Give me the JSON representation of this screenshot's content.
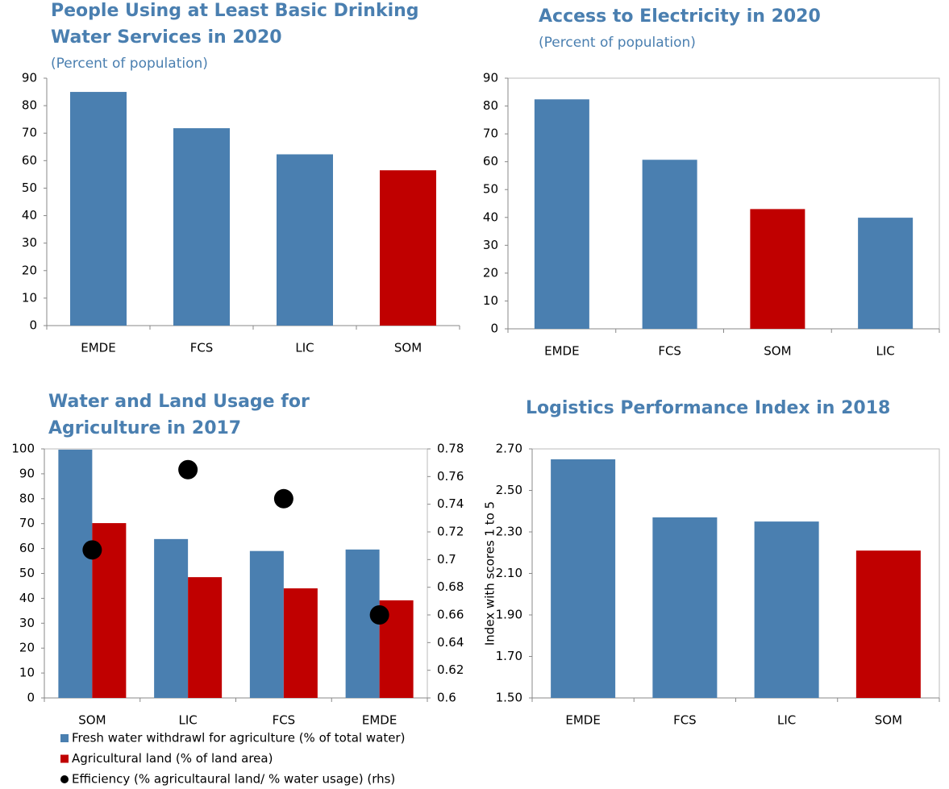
{
  "chart_data": [
    {
      "type": "bar",
      "title": [
        "People Using at Least Basic Drinking",
        "Water Services in 2020"
      ],
      "subtitle": "(Percent of population)",
      "categories": [
        "EMDE",
        "FCS",
        "LIC",
        "SOM"
      ],
      "values": [
        85,
        71.8,
        62.3,
        56.5
      ],
      "colors": [
        "#4a7fb0",
        "#4a7fb0",
        "#4a7fb0",
        "#c00000"
      ],
      "ylim": [
        0,
        90
      ],
      "yticks": [
        0,
        10,
        20,
        30,
        40,
        50,
        60,
        70,
        80,
        90
      ]
    },
    {
      "type": "bar",
      "title": [
        "Access to Electricity in 2020"
      ],
      "subtitle": "(Percent of population)",
      "categories": [
        "EMDE",
        "FCS",
        "SOM",
        "LIC"
      ],
      "values": [
        82.4,
        60.7,
        43,
        39.9
      ],
      "colors": [
        "#4a7fb0",
        "#4a7fb0",
        "#c00000",
        "#4a7fb0"
      ],
      "ylim": [
        0,
        90
      ],
      "yticks": [
        0,
        10,
        20,
        30,
        40,
        50,
        60,
        70,
        80,
        90
      ]
    },
    {
      "type": "bar",
      "title": [
        "Water and Land Usage for",
        "Agriculture in 2017"
      ],
      "categories": [
        "SOM",
        "LIC",
        "FCS",
        "EMDE"
      ],
      "series": [
        {
          "name": "Fresh water withdrawl for agriculture (% of total water)",
          "color": "#4a7fb0",
          "values": [
            99.7,
            63.8,
            59,
            59.6
          ]
        },
        {
          "name": "Agricultural land (% of land area)",
          "color": "#c00000",
          "values": [
            70.2,
            48.5,
            44,
            39.2
          ]
        },
        {
          "name": "Efficiency (% agricultaural land/ % water usage) (rhs)",
          "color": "#000000",
          "type": "scatter",
          "axis": "y2",
          "values": [
            0.707,
            0.765,
            0.744,
            0.66
          ]
        }
      ],
      "ylim": [
        0,
        100
      ],
      "yticks": [
        0,
        10,
        20,
        30,
        40,
        50,
        60,
        70,
        80,
        90,
        100
      ],
      "y2lim": [
        0.6,
        0.78
      ],
      "y2ticks": [
        0.6,
        0.62,
        0.64,
        0.66,
        0.68,
        0.7,
        0.72,
        0.74,
        0.76,
        0.78
      ]
    },
    {
      "type": "bar",
      "title": [
        "Logistics Performance Index in 2018"
      ],
      "ylabel": "Index with scores 1 to 5",
      "categories": [
        "EMDE",
        "FCS",
        "LIC",
        "SOM"
      ],
      "values": [
        2.65,
        2.37,
        2.35,
        2.21
      ],
      "colors": [
        "#4a7fb0",
        "#4a7fb0",
        "#4a7fb0",
        "#c00000"
      ],
      "ylim": [
        1.5,
        2.7
      ],
      "yticks": [
        {
          "value": 1.5,
          "label": "1.50"
        },
        {
          "value": 1.7,
          "label": "1.70"
        },
        {
          "value": 1.9,
          "label": "1.90"
        },
        {
          "value": 2.1,
          "label": "2.10"
        },
        {
          "value": 2.3,
          "label": "2.30"
        },
        {
          "value": 2.5,
          "label": "2.50"
        },
        {
          "value": 2.7,
          "label": "2.70"
        }
      ]
    }
  ]
}
